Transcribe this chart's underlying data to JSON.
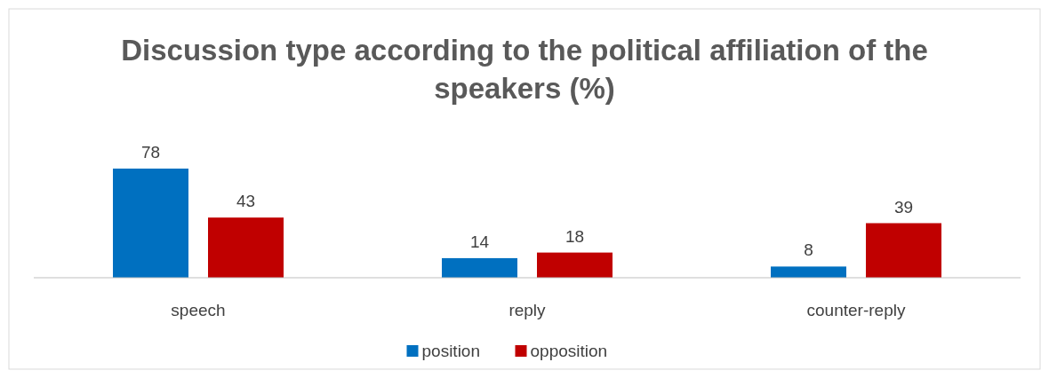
{
  "chart_data": {
    "type": "bar",
    "title": "Discussion type according to the political affiliation of the speakers (%)",
    "categories": [
      "speech",
      "reply",
      "counter-reply"
    ],
    "series": [
      {
        "name": "position",
        "color": "#0070c0",
        "values": [
          78,
          14,
          8
        ]
      },
      {
        "name": "opposition",
        "color": "#c00000",
        "values": [
          43,
          18,
          39
        ]
      }
    ],
    "data_labels": true,
    "legend": "bottom"
  }
}
